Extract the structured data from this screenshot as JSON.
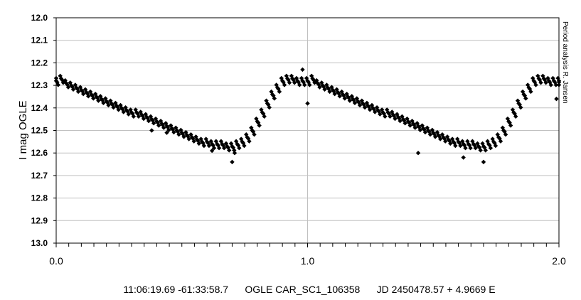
{
  "chart_data": {
    "type": "scatter",
    "ylabel": "I mag OGLE",
    "side_note": "Period analysis R. Jansen",
    "caption": "11:06:19.69 -61:33:58.7      OGLE CAR_SC1_106358      JD 2450478.57 + 4.9669 E",
    "xlim": [
      0.0,
      2.0
    ],
    "ylim": [
      12.0,
      13.0
    ],
    "y_inverted": true,
    "x_tick_labels": [
      "0.0",
      "1.0",
      "2.0"
    ],
    "x_major_ticks": [
      0.0,
      1.0,
      2.0
    ],
    "y_ticks": [
      12.0,
      12.1,
      12.2,
      12.3,
      12.4,
      12.5,
      12.6,
      12.7,
      12.8,
      12.9,
      13.0
    ],
    "y_tick_labels": [
      "12.0",
      "12.1",
      "12.2",
      "12.3",
      "12.4",
      "12.5",
      "12.6",
      "12.7",
      "12.8",
      "12.9",
      "13.0"
    ],
    "marker": "diamond",
    "marker_color": "#000000",
    "grid": true,
    "grid_color": "#c0c0c0",
    "series": [
      {
        "x": [
          0.0,
          0.02,
          0.04,
          0.06,
          0.08,
          0.1,
          0.12,
          0.14,
          0.16,
          0.18,
          0.2,
          0.22,
          0.24,
          0.26,
          0.28,
          0.3,
          0.32,
          0.34,
          0.36,
          0.38,
          0.4,
          0.42,
          0.44,
          0.46,
          0.48,
          0.5,
          0.52,
          0.54,
          0.56,
          0.58,
          0.6,
          0.62,
          0.64,
          0.66,
          0.68,
          0.7,
          0.72,
          0.74,
          0.76,
          0.78,
          0.8,
          0.82,
          0.84,
          0.86,
          0.88,
          0.9,
          0.92,
          0.94,
          0.96,
          0.98,
          1.0,
          1.02,
          1.04,
          1.06,
          1.08,
          1.1,
          1.12,
          1.14,
          1.16,
          1.18,
          1.2,
          1.22,
          1.24,
          1.26,
          1.28,
          1.3,
          1.32,
          1.34,
          1.36,
          1.38,
          1.4,
          1.42,
          1.44,
          1.46,
          1.48,
          1.5,
          1.52,
          1.54,
          1.56,
          1.58,
          1.6,
          1.62,
          1.64,
          1.66,
          1.68,
          1.7,
          1.72,
          1.74,
          1.76,
          1.78,
          1.8,
          1.82,
          1.84,
          1.86,
          1.88,
          1.9,
          1.92,
          1.94,
          1.96,
          1.98,
          2.0,
          0.38,
          0.44,
          0.62,
          0.7,
          0.71,
          0.98,
          1.0,
          1.44,
          1.62,
          1.7,
          1.99
        ],
        "y": [
          12.28,
          12.27,
          12.29,
          12.3,
          12.31,
          12.32,
          12.33,
          12.34,
          12.35,
          12.36,
          12.37,
          12.38,
          12.39,
          12.4,
          12.41,
          12.42,
          12.42,
          12.43,
          12.44,
          12.45,
          12.46,
          12.47,
          12.48,
          12.49,
          12.5,
          12.51,
          12.52,
          12.53,
          12.54,
          12.55,
          12.55,
          12.56,
          12.56,
          12.56,
          12.57,
          12.57,
          12.56,
          12.55,
          12.53,
          12.5,
          12.46,
          12.42,
          12.38,
          12.34,
          12.31,
          12.28,
          12.27,
          12.27,
          12.28,
          12.28,
          12.28,
          12.27,
          12.29,
          12.3,
          12.31,
          12.32,
          12.33,
          12.34,
          12.35,
          12.36,
          12.37,
          12.38,
          12.39,
          12.4,
          12.41,
          12.42,
          12.42,
          12.43,
          12.44,
          12.45,
          12.46,
          12.47,
          12.48,
          12.49,
          12.5,
          12.51,
          12.52,
          12.53,
          12.54,
          12.55,
          12.55,
          12.56,
          12.56,
          12.56,
          12.57,
          12.57,
          12.56,
          12.55,
          12.53,
          12.5,
          12.46,
          12.42,
          12.38,
          12.34,
          12.31,
          12.28,
          12.27,
          12.27,
          12.28,
          12.28,
          12.28,
          12.5,
          12.51,
          12.59,
          12.64,
          12.6,
          12.23,
          12.38,
          12.6,
          12.62,
          12.64,
          12.36
        ]
      }
    ]
  }
}
